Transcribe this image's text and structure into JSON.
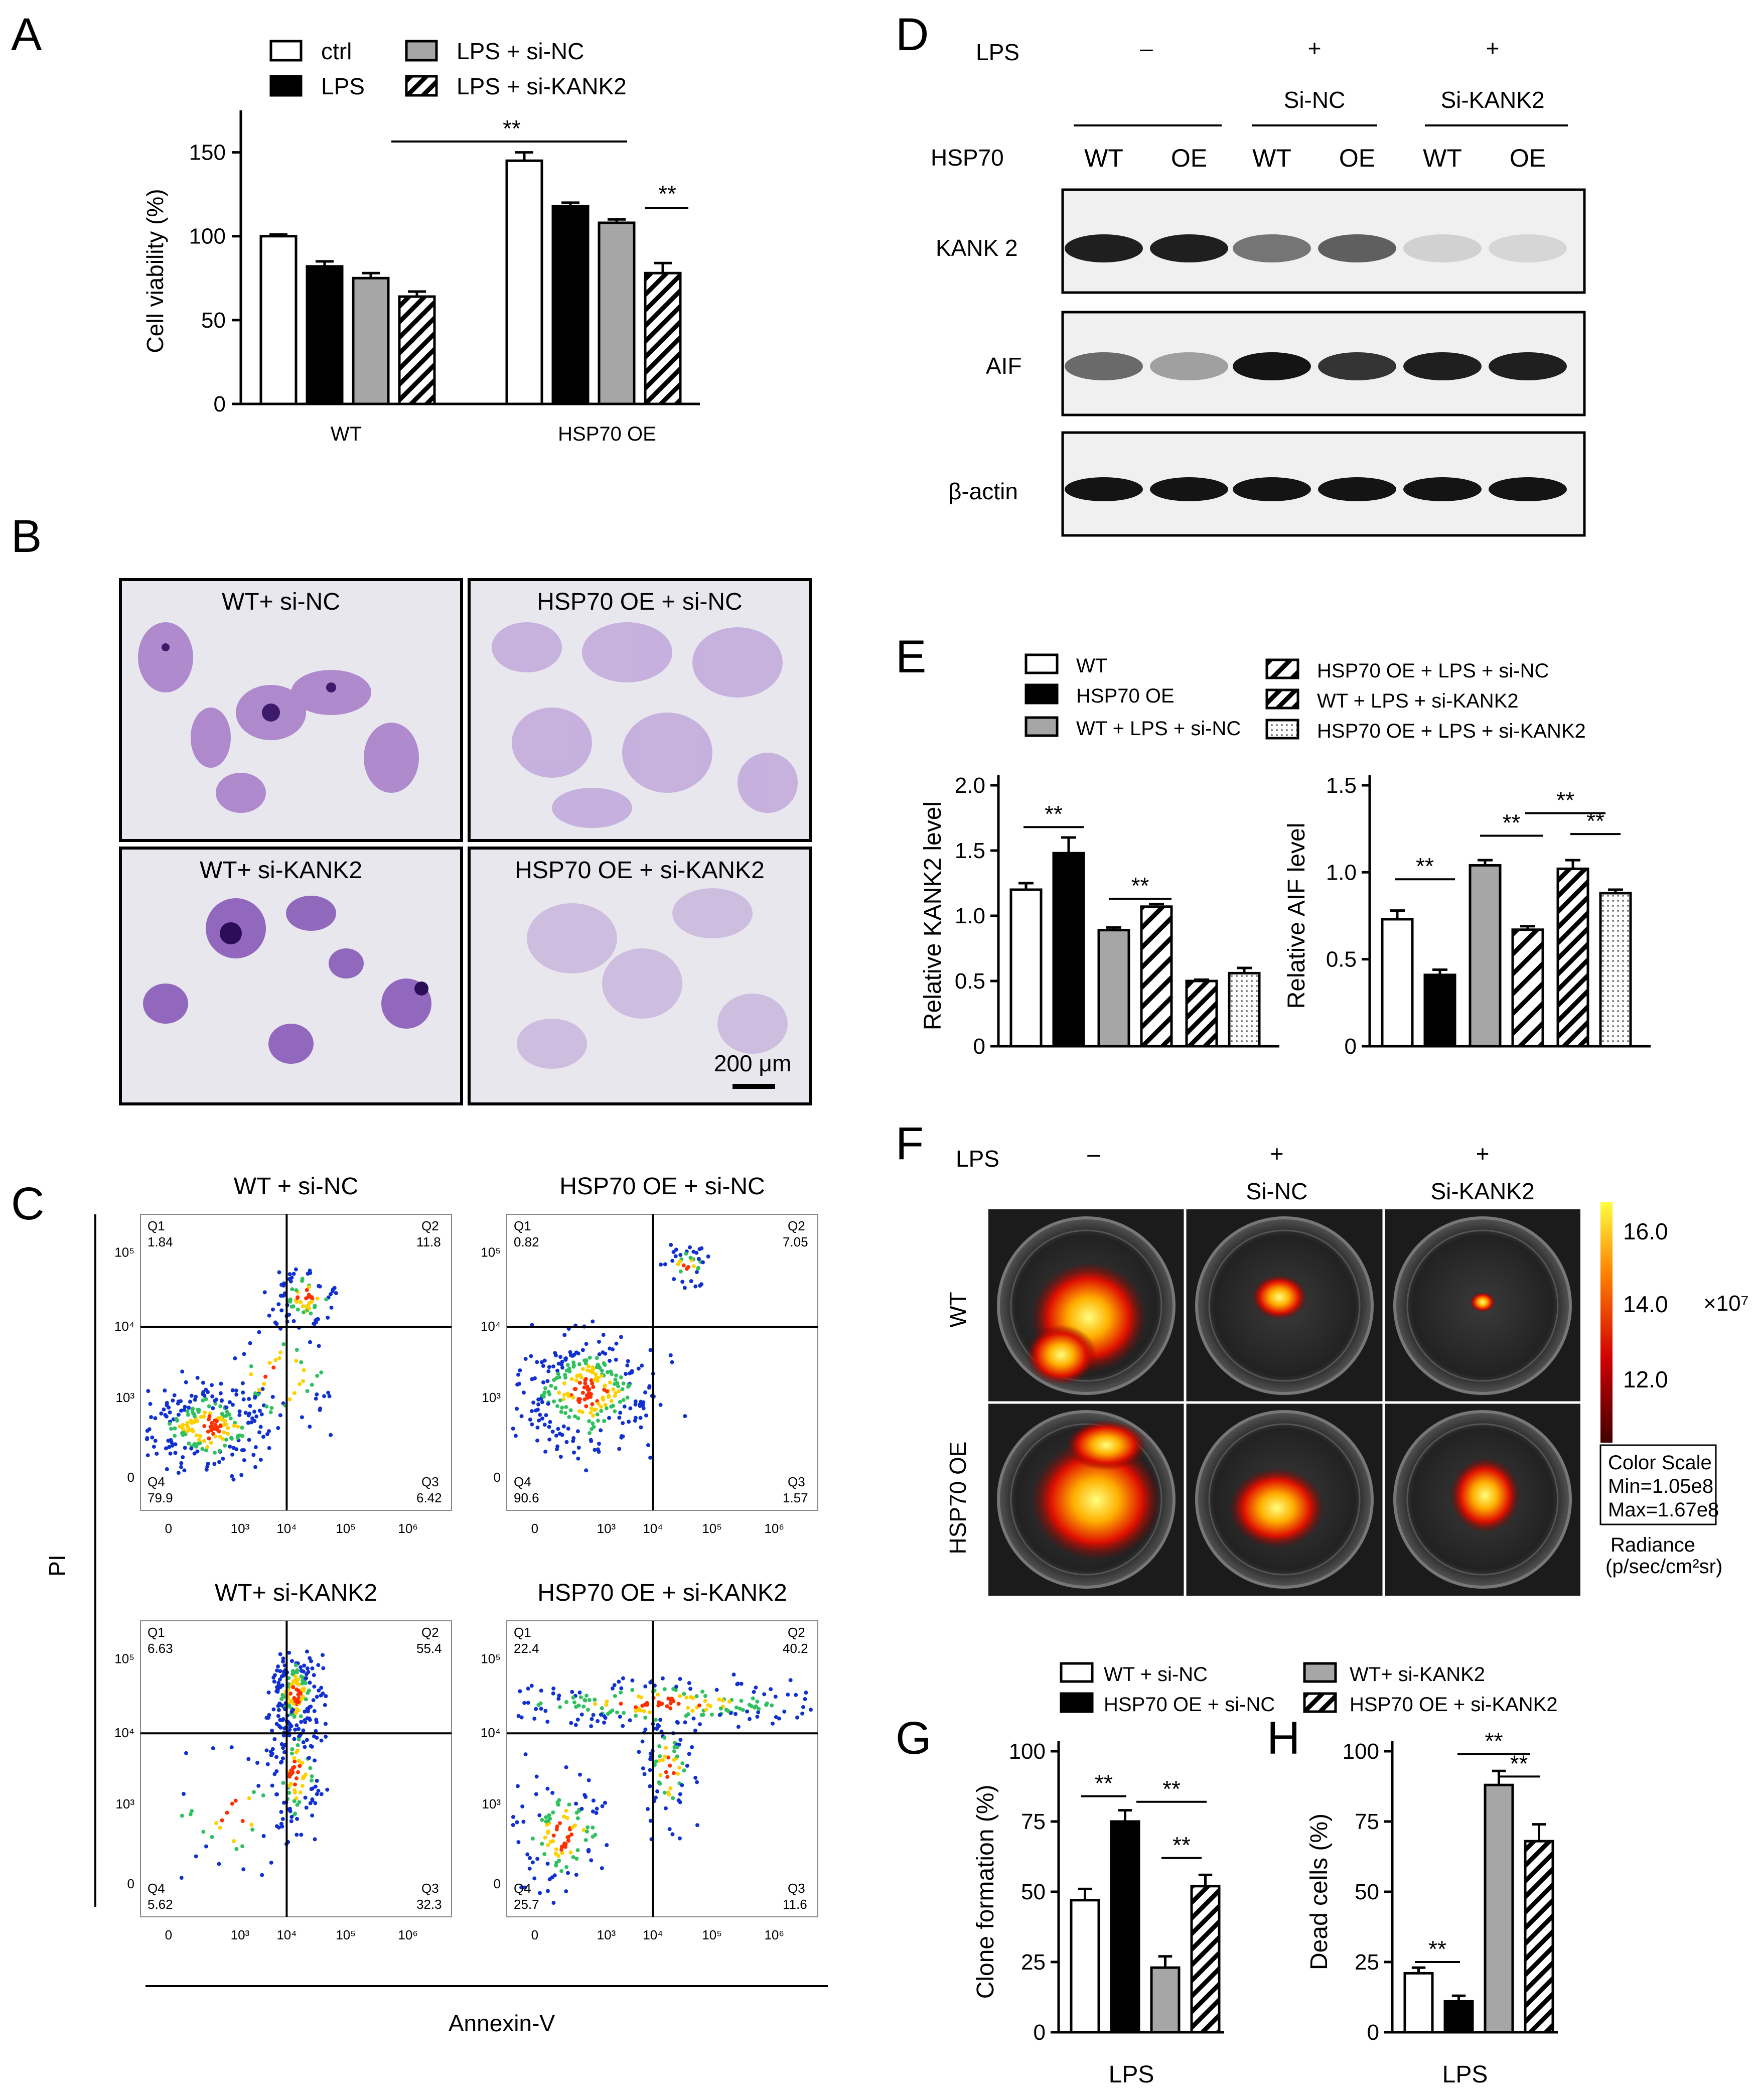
{
  "panels": {
    "A": "A",
    "B": "B",
    "C": "C",
    "D": "D",
    "E": "E",
    "F": "F",
    "G": "G",
    "H": "H"
  },
  "colors": {
    "white": "#ffffff",
    "black": "#000000",
    "gray": "#a6a6a6",
    "dotted": "#e8e8e8"
  },
  "sig": "**",
  "chart_A": {
    "type": "bar",
    "ylabel": "Cell viability (%)",
    "ylim": [
      0,
      175
    ],
    "yticks": [
      "0",
      "50",
      "100",
      "150"
    ],
    "groups": [
      "WT",
      "HSP70 OE"
    ],
    "legend": [
      "ctrl",
      "LPS",
      "LPS + si-NC",
      "LPS + si-KANK2"
    ],
    "series": [
      {
        "name": "ctrl",
        "pattern": "white",
        "values": [
          100,
          145
        ],
        "errors": [
          1,
          5
        ]
      },
      {
        "name": "LPS",
        "pattern": "black",
        "values": [
          82,
          118
        ],
        "errors": [
          3,
          2
        ]
      },
      {
        "name": "LPS + si-NC",
        "pattern": "gray",
        "values": [
          75,
          108
        ],
        "errors": [
          3,
          2
        ]
      },
      {
        "name": "LPS + si-KANK2",
        "pattern": "hatch",
        "values": [
          64,
          78
        ],
        "errors": [
          3,
          6
        ]
      }
    ]
  },
  "panel_B": {
    "images": [
      "WT+ si-NC",
      "HSP70 OE + si-NC",
      "WT+ si-KANK2",
      "HSP70 OE + si-KANK2"
    ],
    "scale": "200 μm"
  },
  "panel_C": {
    "titles": [
      "WT + si-NC",
      "HSP70 OE + si-NC",
      "WT+ si-KANK2",
      "HSP70 OE + si-KANK2"
    ],
    "quadrants": [
      {
        "Q1": "1.84",
        "Q2": "11.8",
        "Q3": "6.42",
        "Q4": "79.9"
      },
      {
        "Q1": "0.82",
        "Q2": "7.05",
        "Q3": "1.57",
        "Q4": "90.6"
      },
      {
        "Q1": "6.63",
        "Q2": "55.4",
        "Q3": "32.3",
        "Q4": "5.62"
      },
      {
        "Q1": "22.4",
        "Q2": "40.2",
        "Q3": "11.6",
        "Q4": "25.7"
      }
    ],
    "q_names": [
      "Q1",
      "Q2",
      "Q3",
      "Q4"
    ],
    "xticks": [
      "0",
      "10³",
      "10⁴",
      "10⁵",
      "10⁶"
    ],
    "yticks": [
      "0",
      "10³",
      "10⁴",
      "10⁵"
    ],
    "ylabel": "PI",
    "xlabel": "Annexin-V"
  },
  "panel_D": {
    "lps_label": "LPS",
    "lps": [
      "–",
      "+",
      "+"
    ],
    "groups": [
      "Si-NC",
      "Si-KANK2"
    ],
    "hsp_label": "HSP70",
    "lanes": [
      "WT",
      "OE",
      "WT",
      "OE",
      "WT",
      "OE"
    ],
    "blots": [
      "KANK 2",
      "AIF",
      "β-actin"
    ]
  },
  "chart_E": [
    {
      "type": "bar",
      "ylabel": "Relative KANK2 level",
      "ylim": [
        0,
        2.0
      ],
      "yticks": [
        "0",
        "0.5",
        "1.0",
        "1.5",
        "2.0"
      ],
      "values": [
        1.2,
        1.48,
        0.89,
        1.07,
        0.5,
        0.56
      ],
      "errors": [
        0.05,
        0.12,
        0.02,
        0.02,
        0.01,
        0.04
      ]
    },
    {
      "type": "bar",
      "ylabel": "Relative AIF level",
      "ylim": [
        0,
        1.5
      ],
      "yticks": [
        "0",
        "0.5",
        "1.0",
        "1.5"
      ],
      "values": [
        0.73,
        0.41,
        1.04,
        0.67,
        1.02,
        0.88
      ],
      "errors": [
        0.05,
        0.03,
        0.03,
        0.02,
        0.05,
        0.02
      ]
    }
  ],
  "legend_E": [
    "WT",
    "HSP70 OE",
    "WT + LPS + si-NC",
    "HSP70 OE + LPS + si-NC",
    "WT + LPS + si-KANK2",
    "HSP70 OE + LPS + si-KANK2"
  ],
  "panel_F": {
    "lps_label": "LPS",
    "lps": [
      "–",
      "+",
      "+"
    ],
    "groups": [
      "Si-NC",
      "Si-KANK2"
    ],
    "rows": [
      "WT",
      "HSP70 OE"
    ],
    "colorbar_ticks": [
      "16.0",
      "14.0",
      "12.0"
    ],
    "colorbar_unit": "×10⁷",
    "scale_box": [
      "Color Scale",
      "Min=1.05e8",
      "Max=1.67e8"
    ],
    "radiance": [
      "Radiance",
      "(p/sec/cm²sr)"
    ]
  },
  "legend_GH": [
    "WT + si-NC",
    "HSP70 OE + si-NC",
    "WT+ si-KANK2",
    "HSP70 OE + si-KANK2"
  ],
  "chart_G": {
    "type": "bar",
    "ylabel": "Clone formation (%)",
    "xlabel": "LPS",
    "ylim": [
      0,
      100
    ],
    "yticks": [
      "0",
      "25",
      "50",
      "75",
      "100"
    ],
    "values": [
      47,
      75,
      23,
      52
    ],
    "errors": [
      4,
      4,
      4,
      4
    ]
  },
  "chart_H": {
    "type": "bar",
    "ylabel": "Dead  cells (%)",
    "xlabel": "LPS",
    "ylim": [
      0,
      100
    ],
    "yticks": [
      "0",
      "25",
      "50",
      "75",
      "100"
    ],
    "values": [
      21,
      11,
      88,
      68
    ],
    "errors": [
      2,
      2,
      5,
      6
    ]
  }
}
